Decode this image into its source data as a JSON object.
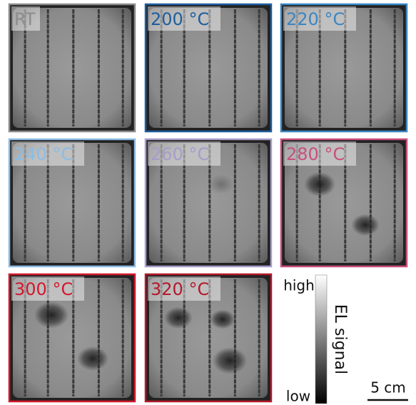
{
  "panels": [
    {
      "label": "RT",
      "color": "#8c8c8c"
    },
    {
      "label": "200 °C",
      "color": "#1d5e9e"
    },
    {
      "label": "220 °C",
      "color": "#3a86c4"
    },
    {
      "label": "240 °C",
      "color": "#8cbce4"
    },
    {
      "label": "260 °C",
      "color": "#a79cc9"
    },
    {
      "label": "280 °C",
      "color": "#c84f7c"
    },
    {
      "label": "300 °C",
      "color": "#d3182d"
    },
    {
      "label": "320 °C",
      "color": "#b4192a"
    }
  ],
  "colorbar": {
    "high": "high",
    "low": "low",
    "title": "EL signal"
  },
  "scale_bar": {
    "label": "5 cm"
  }
}
